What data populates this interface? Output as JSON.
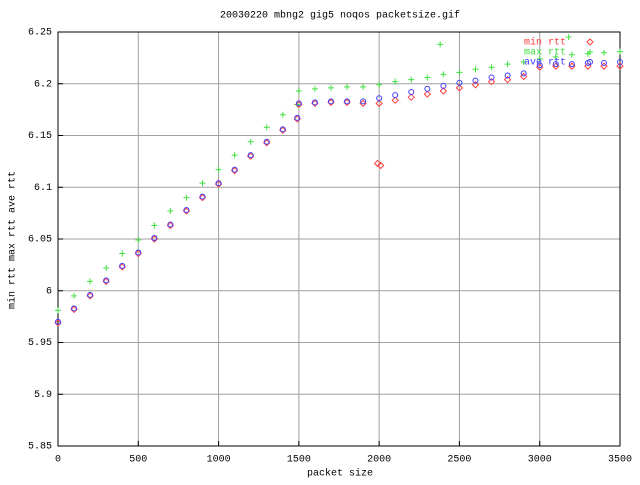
{
  "chart_data": {
    "type": "scatter",
    "title": "20030220 mbng2 gig5 noqos packetsize.gif",
    "x_label": "packet size",
    "y_label": "min rtt max rtt ave rtt",
    "xlim": [
      0,
      3500
    ],
    "xticks": [
      0,
      500,
      1000,
      1500,
      2000,
      2500,
      3000,
      3500
    ],
    "ylim": [
      5.85,
      6.25
    ],
    "yticks": [
      5.85,
      5.9,
      5.95,
      6,
      6.05,
      6.1,
      6.15,
      6.2,
      6.25
    ],
    "grid": true,
    "legend": "top right",
    "series": [
      {
        "name": "min rtt",
        "color": "#ff4040",
        "marker": "diamond",
        "x": [
          0,
          100,
          200,
          300,
          400,
          500,
          600,
          700,
          800,
          900,
          1000,
          1100,
          1200,
          1300,
          1400,
          1490,
          1500,
          1600,
          1700,
          1800,
          1900,
          2000,
          2100,
          2200,
          2300,
          2400,
          2500,
          2600,
          2700,
          2800,
          2900,
          3000,
          3100,
          3200,
          3300,
          3400,
          3500,
          1990,
          2010
        ],
        "values": [
          5.969,
          5.982,
          5.995,
          6.009,
          6.023,
          6.036,
          6.05,
          6.063,
          6.077,
          6.09,
          6.103,
          6.116,
          6.13,
          6.143,
          6.155,
          6.166,
          6.18,
          6.181,
          6.182,
          6.182,
          6.181,
          6.181,
          6.184,
          6.187,
          6.19,
          6.193,
          6.196,
          6.199,
          6.202,
          6.204,
          6.207,
          6.216,
          6.217,
          6.217,
          6.217,
          6.217,
          6.217,
          6.123,
          6.121
        ]
      },
      {
        "name": "max rtt",
        "color": "#40e040",
        "marker": "plus",
        "x": [
          0,
          100,
          200,
          300,
          400,
          500,
          600,
          700,
          800,
          900,
          1000,
          1100,
          1200,
          1300,
          1400,
          1490,
          1500,
          1600,
          1700,
          1800,
          1900,
          2000,
          2100,
          2200,
          2300,
          2400,
          2500,
          2600,
          2700,
          2800,
          2900,
          3000,
          3100,
          3200,
          3300,
          3400,
          3500,
          2380,
          3180
        ],
        "values": [
          5.981,
          5.995,
          6.009,
          6.022,
          6.036,
          6.049,
          6.063,
          6.077,
          6.09,
          6.104,
          6.117,
          6.131,
          6.144,
          6.158,
          6.17,
          6.18,
          6.193,
          6.195,
          6.196,
          6.197,
          6.197,
          6.199,
          6.202,
          6.204,
          6.206,
          6.209,
          6.211,
          6.214,
          6.216,
          6.219,
          6.221,
          6.224,
          6.226,
          6.228,
          6.229,
          6.23,
          6.231,
          6.238,
          6.245
        ]
      },
      {
        "name": "ave rtt",
        "color": "#4040ff",
        "marker": "circle",
        "x": [
          0,
          100,
          200,
          300,
          400,
          500,
          600,
          700,
          800,
          900,
          1000,
          1100,
          1200,
          1300,
          1400,
          1490,
          1500,
          1600,
          1700,
          1800,
          1900,
          2000,
          2100,
          2200,
          2300,
          2400,
          2500,
          2600,
          2700,
          2800,
          2900,
          3000,
          3100,
          3200,
          3300,
          3400,
          3500
        ],
        "values": [
          5.97,
          5.983,
          5.996,
          6.01,
          6.024,
          6.037,
          6.051,
          6.064,
          6.078,
          6.091,
          6.104,
          6.117,
          6.131,
          6.144,
          6.156,
          6.167,
          6.181,
          6.182,
          6.183,
          6.183,
          6.183,
          6.186,
          6.189,
          6.192,
          6.195,
          6.198,
          6.201,
          6.203,
          6.206,
          6.208,
          6.21,
          6.218,
          6.219,
          6.219,
          6.22,
          6.22,
          6.221
        ]
      }
    ]
  }
}
